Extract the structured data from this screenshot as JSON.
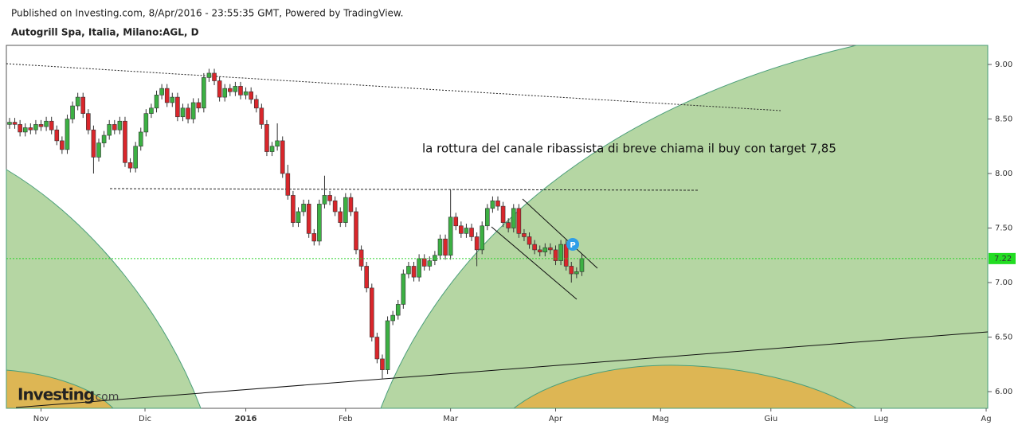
{
  "chart_data": {
    "type": "candlestick",
    "subtitle": "Published on Investing.com, 8/Apr/2016 - 23:55:35 GMT, Powered by TradingView.",
    "title": "Autogrill Spa, Italia, Milano:AGL, D",
    "annotation": "la rottura del canale ribassista di breve chiama il buy con target 7,85",
    "badge": "P",
    "logo_name": "Investing",
    "logo_suffix": ".com",
    "up_color": "#3cb043",
    "down_color": "#d9262b",
    "xlim": [
      -0.6,
      186.3
    ],
    "xticks": [
      {
        "value": 6,
        "label": "Nov"
      },
      {
        "value": 25.8,
        "label": "Dic"
      },
      {
        "value": 45,
        "label": "2016"
      },
      {
        "value": 64,
        "label": "Feb"
      },
      {
        "value": 84,
        "label": "Mar"
      },
      {
        "value": 104,
        "label": "Apr"
      },
      {
        "value": 124,
        "label": "Mag"
      },
      {
        "value": 145,
        "label": "Giu"
      },
      {
        "value": 166,
        "label": "Lug"
      },
      {
        "value": 186,
        "label": "Ag"
      }
    ],
    "ylim": [
      5.847,
      9.175
    ],
    "yticks": [
      {
        "value": 6,
        "label": "6.00"
      },
      {
        "value": 6.5,
        "label": "6.50"
      },
      {
        "value": 7,
        "label": "7.00"
      },
      {
        "value": 7.5,
        "label": "7.50"
      },
      {
        "value": 8,
        "label": "8.00"
      },
      {
        "value": 8.5,
        "label": "8.50"
      },
      {
        "value": 9,
        "label": "9.00"
      }
    ],
    "open": [
      8.45,
      8.47,
      8.45,
      8.38,
      8.42,
      8.4,
      8.45,
      8.43,
      8.48,
      8.4,
      8.3,
      8.22,
      8.5,
      8.62,
      8.7,
      8.55,
      8.4,
      8.15,
      8.28,
      8.35,
      8.45,
      8.4,
      8.48,
      8.1,
      8.05,
      8.25,
      8.38,
      8.55,
      8.6,
      8.72,
      8.78,
      8.65,
      8.7,
      8.52,
      8.6,
      8.5,
      8.65,
      8.6,
      8.88,
      8.92,
      8.85,
      8.7,
      8.78,
      8.75,
      8.8,
      8.72,
      8.75,
      8.68,
      8.6,
      8.45,
      8.2,
      8.25,
      8.3,
      8.0,
      7.8,
      7.55,
      7.65,
      7.72,
      7.45,
      7.38,
      7.72,
      7.8,
      7.75,
      7.65,
      7.55,
      7.78,
      7.65,
      7.3,
      7.15,
      6.95,
      6.5,
      6.3,
      6.2,
      6.65,
      6.7,
      6.8,
      7.08,
      7.15,
      7.05,
      7.22,
      7.15,
      7.2,
      7.25,
      7.4,
      7.25,
      7.6,
      7.52,
      7.45,
      7.5,
      7.42,
      7.3,
      7.52,
      7.68,
      7.75,
      7.7,
      7.55,
      7.5,
      7.68,
      7.45,
      7.42,
      7.35,
      7.3,
      7.28,
      7.32,
      7.3,
      7.2,
      7.35,
      7.15,
      7.08,
      7.1
    ],
    "high": [
      8.51,
      8.51,
      8.49,
      8.46,
      8.46,
      8.49,
      8.49,
      8.52,
      8.52,
      8.44,
      8.34,
      8.54,
      8.66,
      8.74,
      8.74,
      8.59,
      8.44,
      8.32,
      8.39,
      8.49,
      8.49,
      8.52,
      8.52,
      8.14,
      8.29,
      8.42,
      8.59,
      8.64,
      8.76,
      8.82,
      8.82,
      8.74,
      8.74,
      8.64,
      8.64,
      8.69,
      8.69,
      8.92,
      8.96,
      8.96,
      8.89,
      8.82,
      8.82,
      8.84,
      8.84,
      8.79,
      8.79,
      8.72,
      8.64,
      8.49,
      8.29,
      8.46,
      8.34,
      8.08,
      7.84,
      7.69,
      7.76,
      7.76,
      7.49,
      7.76,
      7.98,
      7.84,
      7.79,
      7.69,
      7.82,
      7.82,
      7.69,
      7.34,
      7.19,
      6.99,
      6.54,
      6.34,
      6.69,
      6.74,
      6.84,
      7.12,
      7.19,
      7.19,
      7.26,
      7.26,
      7.24,
      7.29,
      7.44,
      7.44,
      7.85,
      7.64,
      7.56,
      7.54,
      7.54,
      7.46,
      7.56,
      7.72,
      7.79,
      7.79,
      7.74,
      7.59,
      7.72,
      7.72,
      7.49,
      7.46,
      7.39,
      7.34,
      7.36,
      7.36,
      7.34,
      7.39,
      7.39,
      7.19,
      7.14,
      7.26
    ],
    "low": [
      8.41,
      8.41,
      8.34,
      8.34,
      8.36,
      8.36,
      8.39,
      8.39,
      8.36,
      8.26,
      8.18,
      8.18,
      8.46,
      8.58,
      8.51,
      8.36,
      8.0,
      8.11,
      8.24,
      8.31,
      8.36,
      8.36,
      8.06,
      8.01,
      8.01,
      8.21,
      8.34,
      8.51,
      8.56,
      8.68,
      8.61,
      8.61,
      8.48,
      8.48,
      8.46,
      8.46,
      8.56,
      8.56,
      8.84,
      8.81,
      8.66,
      8.66,
      8.71,
      8.71,
      8.68,
      8.68,
      8.64,
      8.56,
      8.41,
      8.16,
      8.16,
      8.21,
      7.96,
      7.76,
      7.51,
      7.51,
      7.61,
      7.41,
      7.34,
      7.34,
      7.68,
      7.71,
      7.61,
      7.51,
      7.51,
      7.61,
      7.26,
      7.11,
      6.91,
      6.46,
      6.26,
      6.12,
      6.16,
      6.61,
      6.66,
      6.76,
      7.04,
      7.01,
      7.01,
      7.11,
      7.11,
      7.16,
      7.21,
      7.21,
      7.21,
      7.48,
      7.41,
      7.41,
      7.38,
      7.15,
      7.26,
      7.48,
      7.64,
      7.66,
      7.51,
      7.46,
      7.46,
      7.41,
      7.38,
      7.31,
      7.26,
      7.24,
      7.24,
      7.26,
      7.16,
      7.16,
      7.11,
      7.0,
      7.04,
      7.06
    ],
    "close": [
      8.47,
      8.45,
      8.38,
      8.42,
      8.4,
      8.45,
      8.43,
      8.48,
      8.4,
      8.3,
      8.22,
      8.5,
      8.62,
      8.7,
      8.55,
      8.4,
      8.15,
      8.28,
      8.35,
      8.45,
      8.4,
      8.48,
      8.1,
      8.05,
      8.25,
      8.38,
      8.55,
      8.6,
      8.72,
      8.78,
      8.65,
      8.7,
      8.52,
      8.6,
      8.5,
      8.65,
      8.6,
      8.88,
      8.92,
      8.85,
      8.7,
      8.78,
      8.75,
      8.8,
      8.72,
      8.75,
      8.68,
      8.6,
      8.45,
      8.2,
      8.25,
      8.3,
      8.0,
      7.8,
      7.55,
      7.65,
      7.72,
      7.45,
      7.38,
      7.72,
      7.8,
      7.75,
      7.65,
      7.55,
      7.78,
      7.65,
      7.3,
      7.15,
      6.95,
      6.5,
      6.3,
      6.2,
      6.65,
      6.7,
      6.8,
      7.08,
      7.15,
      7.05,
      7.22,
      7.15,
      7.2,
      7.25,
      7.4,
      7.25,
      7.6,
      7.52,
      7.45,
      7.5,
      7.42,
      7.3,
      7.52,
      7.68,
      7.75,
      7.7,
      7.55,
      7.5,
      7.68,
      7.45,
      7.42,
      7.35,
      7.3,
      7.28,
      7.32,
      7.3,
      7.2,
      7.35,
      7.15,
      7.08,
      7.1,
      7.22
    ]
  }
}
